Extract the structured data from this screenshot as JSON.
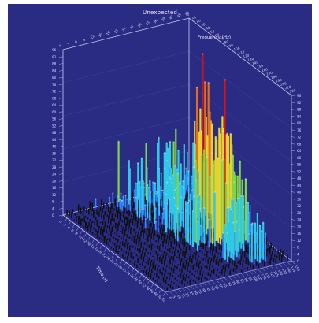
{
  "chart_data": {
    "type": "bar3d",
    "title": "Unexpected",
    "xlabel": "Time (s)",
    "ylabel": "Frequency (Hz)",
    "zlabel": "",
    "grid": true,
    "colormap": [
      "#101010",
      "#2c8cff",
      "#2ec8e8",
      "#7ed44a",
      "#e8d030",
      "#e86a1c",
      "#d81010"
    ],
    "background": "#2a2c84",
    "gridColor": "#c8c8f0",
    "peaks": [
      {
        "x": 14,
        "y": 18,
        "z": 1.0
      },
      {
        "x": 16,
        "y": 17,
        "z": 0.55
      },
      {
        "x": 20,
        "y": 19,
        "z": 0.62
      },
      {
        "x": 22,
        "y": 16,
        "z": 0.82
      },
      {
        "x": 24,
        "y": 18,
        "z": 0.74
      },
      {
        "x": 26,
        "y": 17,
        "z": 0.9
      },
      {
        "x": 28,
        "y": 15,
        "z": 0.66
      },
      {
        "x": 30,
        "y": 18,
        "z": 0.52
      },
      {
        "x": 12,
        "y": 14,
        "z": 0.38
      },
      {
        "x": 18,
        "y": 12,
        "z": 0.35
      },
      {
        "x": 26,
        "y": 12,
        "z": 0.4
      },
      {
        "x": 33,
        "y": 16,
        "z": 0.44
      },
      {
        "x": 36,
        "y": 14,
        "z": 0.3
      },
      {
        "x": 40,
        "y": 17,
        "z": 0.28
      }
    ],
    "gridSize": {
      "nx": 44,
      "ny": 22
    }
  }
}
